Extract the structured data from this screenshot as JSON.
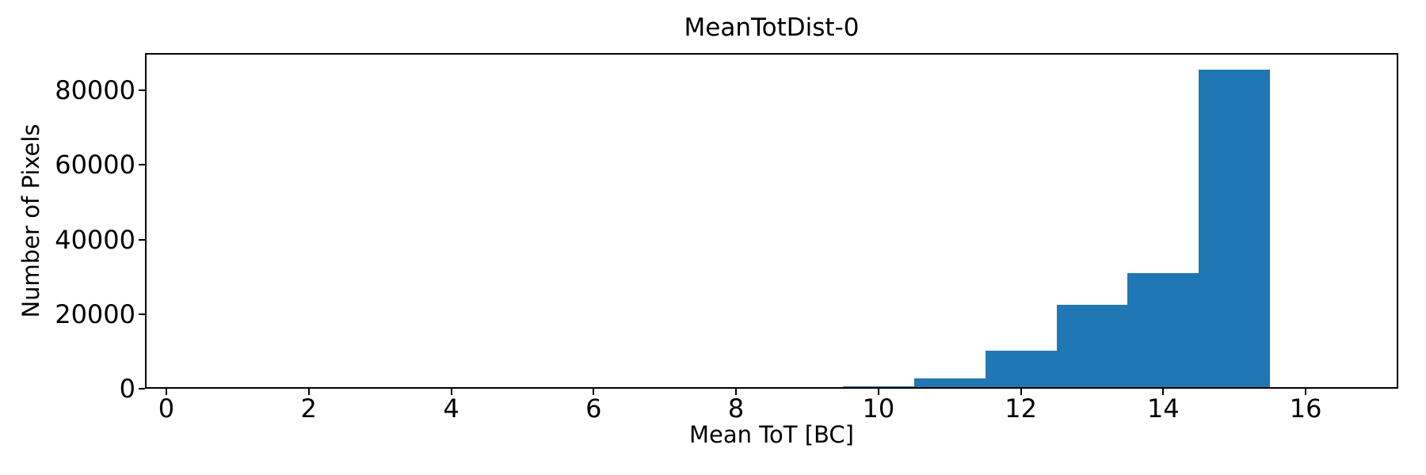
{
  "chart_data": {
    "type": "bar",
    "subtype": "histogram",
    "title": "MeanTotDist-0",
    "xlabel": "Mean ToT [BC]",
    "ylabel": "Number of Pixels",
    "bin_edges": [
      9.5,
      10.5,
      11.5,
      12.5,
      13.5,
      14.5,
      15.5
    ],
    "counts": [
      700,
      2700,
      10100,
      22600,
      31100,
      85500
    ],
    "bar_color": "#1f77b4",
    "text_color": "#000000",
    "xlim": [
      -0.3,
      17.3
    ],
    "ylim": [
      0,
      90000
    ],
    "xticks": [
      0,
      2,
      4,
      6,
      8,
      10,
      12,
      14,
      16
    ],
    "yticks": [
      0,
      20000,
      40000,
      60000,
      80000
    ],
    "grid": false,
    "legend": null
  }
}
